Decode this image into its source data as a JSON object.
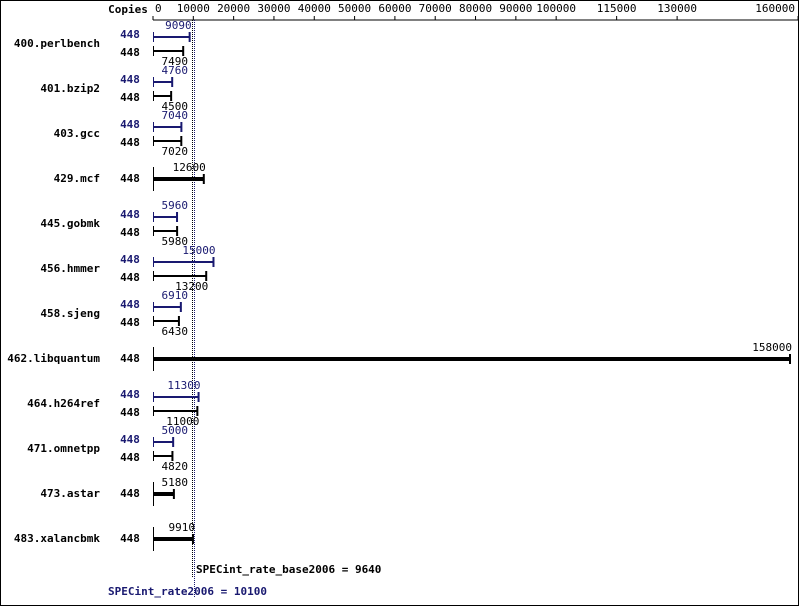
{
  "chart_data": {
    "type": "bar",
    "copies_label": "Copies",
    "categories": [
      "400.perlbench",
      "401.bzip2",
      "403.gcc",
      "429.mcf",
      "445.gobmk",
      "456.hmmer",
      "458.sjeng",
      "462.libquantum",
      "464.h264ref",
      "471.omnetpp",
      "473.astar",
      "483.xalancbmk"
    ],
    "series": [
      {
        "color": "#191970",
        "values": [
          9090,
          4760,
          7040,
          null,
          5960,
          15000,
          6910,
          null,
          11300,
          5000,
          null,
          null
        ],
        "copies": [
          448,
          448,
          448,
          null,
          448,
          448,
          448,
          null,
          448,
          448,
          null,
          null
        ]
      },
      {
        "color": "#000000",
        "values": [
          7490,
          4500,
          7020,
          12600,
          5980,
          13200,
          6430,
          158000,
          11000,
          4820,
          5180,
          9910
        ],
        "copies": [
          448,
          448,
          448,
          448,
          448,
          448,
          448,
          448,
          448,
          448,
          448,
          448
        ]
      }
    ],
    "xlim": [
      0,
      160000
    ],
    "xticks": [
      0,
      10000,
      20000,
      30000,
      40000,
      50000,
      60000,
      70000,
      80000,
      90000,
      100000,
      115000,
      130000,
      160000
    ],
    "reference_lines": [
      {
        "value": 9640,
        "label": "SPECint_rate_base2006 = 9640",
        "color": "#000000"
      },
      {
        "value": 10100,
        "label": "SPECint_rate2006 = 10100",
        "color": "#191970"
      }
    ]
  }
}
